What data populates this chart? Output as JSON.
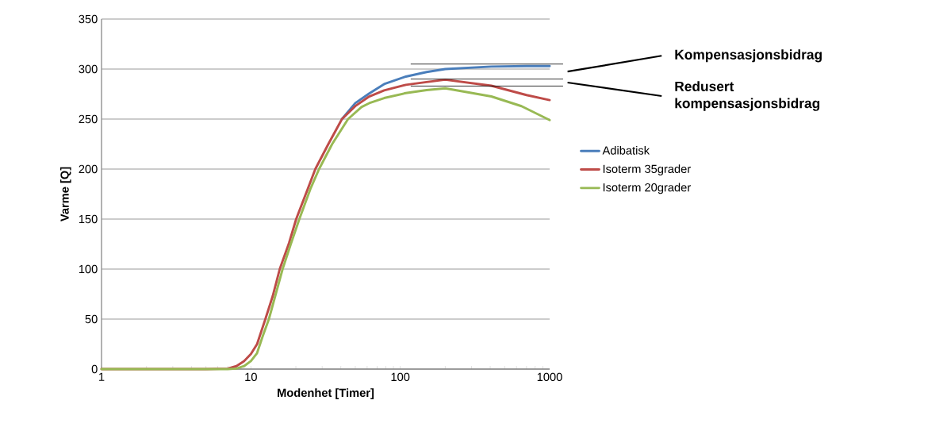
{
  "chart_data": {
    "type": "line",
    "xlabel": "Modenhet [Timer]",
    "ylabel": "Varme [Q]",
    "log": "x",
    "xlim": [
      1,
      1000
    ],
    "xticks": [
      1,
      10,
      100,
      1000
    ],
    "ylim": [
      0,
      350
    ],
    "yticks": [
      0,
      50,
      100,
      150,
      200,
      250,
      300,
      350
    ],
    "grid": "y",
    "legend": "right",
    "marker": "none",
    "line_style": "solid",
    "series": [
      {
        "name": "Adibatisk",
        "color": "#4a7ebb",
        "x": [
          40.7,
          50,
          62,
          78,
          109,
          150,
          200,
          407,
          700,
          1000
        ],
        "values": [
          250,
          266,
          275.6,
          285,
          292.5,
          297,
          300,
          302.5,
          303,
          303
        ]
      },
      {
        "name": "Isoterm 35grader",
        "color": "#be4b48",
        "x": [
          1,
          5,
          7,
          8,
          9,
          10,
          11,
          12.5,
          14,
          15.6,
          18,
          20.1,
          24,
          27,
          33,
          40.7,
          50,
          62,
          78,
          109,
          150,
          200,
          407,
          700,
          1000
        ],
        "values": [
          0,
          0,
          0.5,
          3,
          8,
          15,
          25,
          50,
          73,
          100,
          126,
          150,
          180,
          200,
          225,
          250,
          263,
          272.6,
          278.7,
          284.2,
          287,
          289.4,
          283.3,
          274,
          269
        ]
      },
      {
        "name": "Isoterm 20grader",
        "color": "#98b954",
        "x": [
          1,
          7,
          8,
          9,
          10,
          11,
          12,
          13.2,
          16.3,
          18.5,
          21.1,
          25,
          28.6,
          35,
          44.7,
          55,
          62,
          78,
          109,
          150,
          200,
          407,
          648,
          1000
        ],
        "values": [
          0,
          0,
          0.5,
          3,
          8,
          16,
          33,
          50,
          100,
          125,
          150,
          180,
          200,
          225,
          250,
          262,
          265.9,
          271,
          276,
          279,
          280.8,
          272.6,
          262.9,
          249
        ]
      }
    ],
    "ref_lines": [
      {
        "axis": "y",
        "value": 305
      },
      {
        "axis": "y",
        "value": 290
      },
      {
        "axis": "y",
        "value": 283
      }
    ],
    "annotations": [
      "Kompensasjonsbidrag",
      "Redusert kompensasjonsbidrag"
    ]
  }
}
